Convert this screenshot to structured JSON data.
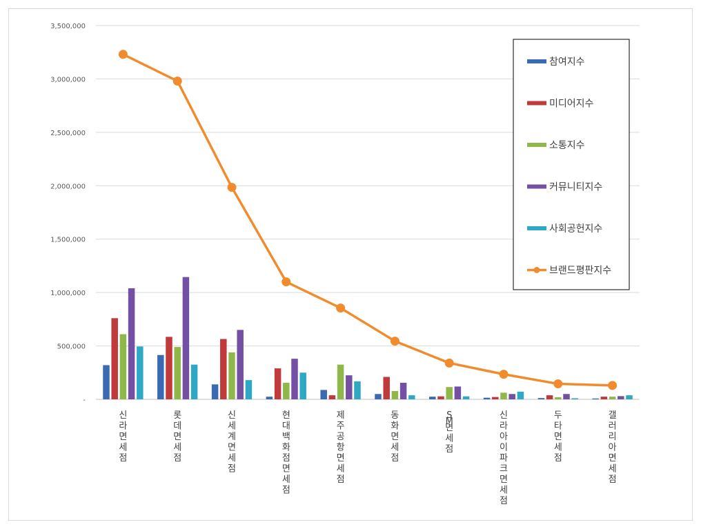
{
  "chart_data": {
    "type": "bar",
    "title": "",
    "xlabel": "",
    "ylabel": "",
    "ylim": [
      0,
      3500000
    ],
    "yticks": [
      0,
      500000,
      1000000,
      1500000,
      2000000,
      2500000,
      3000000,
      3500000
    ],
    "ytick_labels": [
      "-",
      "500,000",
      "1,000,000",
      "1,500,000",
      "2,000,000",
      "2,500,000",
      "3,000,000",
      "3,500,000"
    ],
    "grid": true,
    "legend_position": "right",
    "categories": [
      "신라면세점",
      "롯데면세점",
      "신세계면세점",
      "현대백화점면세점",
      "제주공항면세점",
      "동화면세점",
      "SM면세점",
      "신라아이파크면세점",
      "두타면세점",
      "갤러리아면세점"
    ],
    "series": [
      {
        "name": "참여지수",
        "kind": "bar",
        "color": "#3a6ab4",
        "values": [
          320000,
          415000,
          140000,
          25000,
          88000,
          50000,
          25000,
          15000,
          12000,
          8000
        ]
      },
      {
        "name": "미디어지수",
        "kind": "bar",
        "color": "#c0393b",
        "values": [
          760000,
          585000,
          565000,
          290000,
          38000,
          210000,
          28000,
          22000,
          38000,
          25000
        ]
      },
      {
        "name": "소통지수",
        "kind": "bar",
        "color": "#8fb74a",
        "values": [
          610000,
          490000,
          440000,
          155000,
          325000,
          78000,
          115000,
          62000,
          20000,
          25000
        ]
      },
      {
        "name": "커뮤니티지수",
        "kind": "bar",
        "color": "#7350a3",
        "values": [
          1040000,
          1145000,
          650000,
          380000,
          225000,
          155000,
          120000,
          50000,
          50000,
          30000
        ]
      },
      {
        "name": "사회공헌지수",
        "kind": "bar",
        "color": "#2fa8c5",
        "values": [
          495000,
          325000,
          180000,
          250000,
          168000,
          38000,
          28000,
          72000,
          10000,
          38000
        ]
      },
      {
        "name": "브랜드평판지수",
        "kind": "line",
        "color": "#f08c2e",
        "values": [
          3230000,
          2980000,
          1985000,
          1100000,
          855000,
          545000,
          340000,
          235000,
          145000,
          130000
        ]
      }
    ]
  }
}
